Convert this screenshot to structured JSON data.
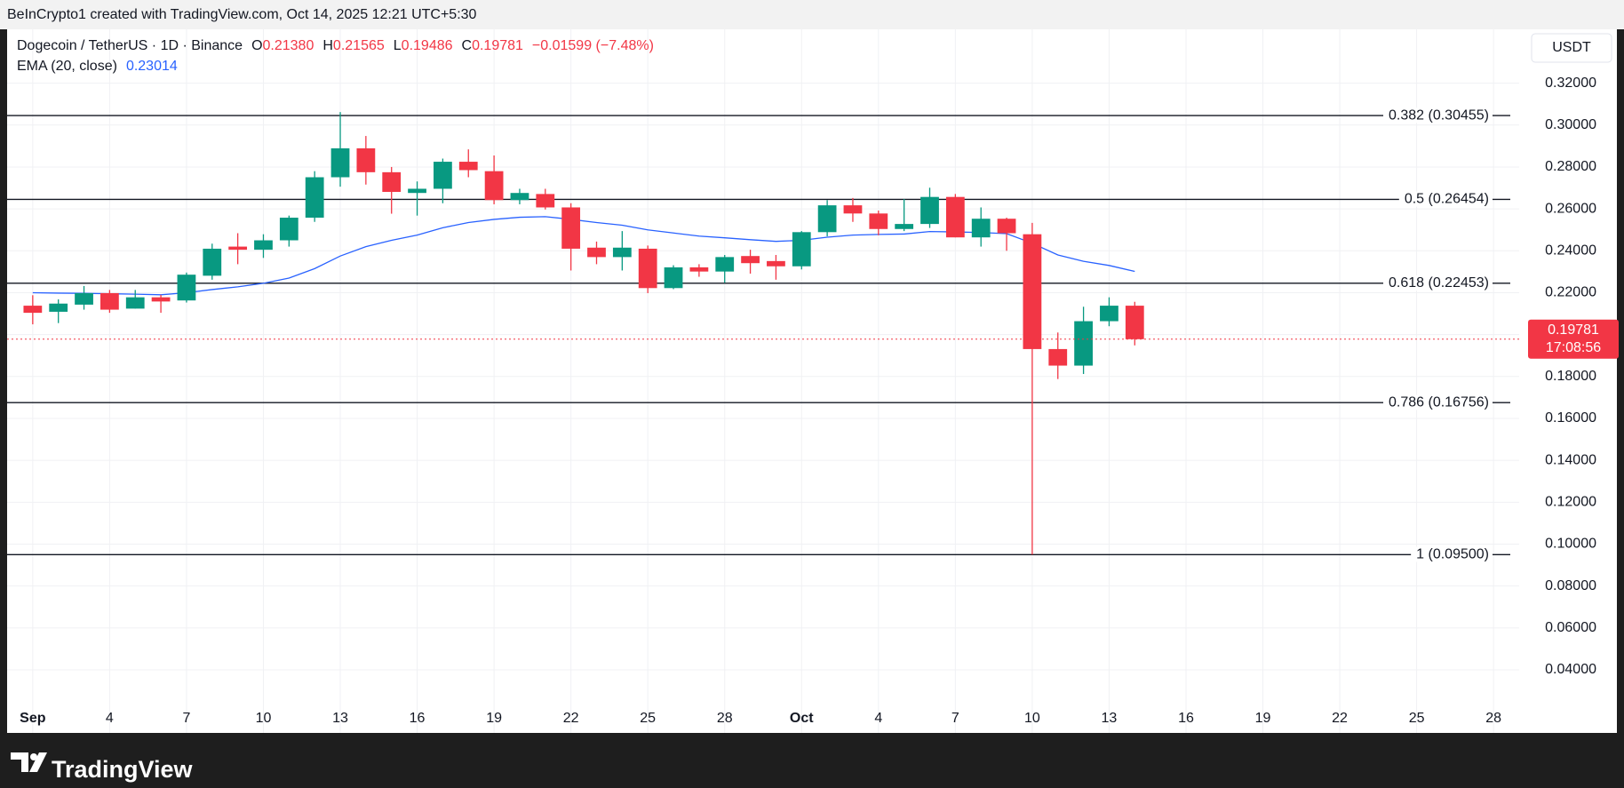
{
  "header": {
    "credit": "BeInCrypto1 created with TradingView.com, Oct 14, 2025 12:21 UTC+5:30"
  },
  "footer": {
    "logo": "TradingView"
  },
  "chart_data": {
    "type": "candlestick",
    "symbol": "Dogecoin / TetherUS · 1D · Binance",
    "legend": {
      "open_letter": "O",
      "open_value": "0.21380",
      "high_letter": "H",
      "low_letter": "L",
      "close_letter": "C",
      "change": "−0.01599 (−7.48%)"
    },
    "currency": "USDT",
    "countdown": "17:08:56",
    "up_color": "#089981",
    "down_color": "#f23645",
    "grid": true,
    "x": [
      "2025-09-01",
      "2025-09-02",
      "2025-09-03",
      "2025-09-04",
      "2025-09-05",
      "2025-09-06",
      "2025-09-07",
      "2025-09-08",
      "2025-09-09",
      "2025-09-10",
      "2025-09-11",
      "2025-09-12",
      "2025-09-13",
      "2025-09-14",
      "2025-09-15",
      "2025-09-16",
      "2025-09-17",
      "2025-09-18",
      "2025-09-19",
      "2025-09-20",
      "2025-09-21",
      "2025-09-22",
      "2025-09-23",
      "2025-09-24",
      "2025-09-25",
      "2025-09-26",
      "2025-09-27",
      "2025-09-28",
      "2025-09-29",
      "2025-09-30",
      "2025-10-01",
      "2025-10-02",
      "2025-10-03",
      "2025-10-04",
      "2025-10-05",
      "2025-10-06",
      "2025-10-07",
      "2025-10-08",
      "2025-10-09",
      "2025-10-10",
      "2025-10-11",
      "2025-10-12",
      "2025-10-13",
      "2025-10-14"
    ],
    "open": [
      0.2138,
      0.2109,
      0.2143,
      0.2198,
      0.2124,
      0.2178,
      0.2163,
      0.2281,
      0.242,
      0.2405,
      0.245,
      0.2558,
      0.2751,
      0.2889,
      0.2775,
      0.2676,
      0.2696,
      0.2825,
      0.278,
      0.2642,
      0.2671,
      0.2607,
      0.2415,
      0.237,
      0.241,
      0.2222,
      0.2321,
      0.2301,
      0.2375,
      0.2351,
      0.2326,
      0.2489,
      0.2617,
      0.2578,
      0.2504,
      0.2528,
      0.2657,
      0.2464,
      0.2553,
      0.2479,
      0.1931,
      0.1852,
      0.2064,
      0.2138
    ],
    "high": [
      0.2188,
      0.2168,
      0.2232,
      0.2213,
      0.2213,
      0.219,
      0.2296,
      0.2434,
      0.2484,
      0.2479,
      0.2568,
      0.278,
      0.3062,
      0.2948,
      0.28,
      0.2731,
      0.284,
      0.2884,
      0.2855,
      0.2696,
      0.2696,
      0.2627,
      0.2444,
      0.2494,
      0.2425,
      0.2331,
      0.2336,
      0.238,
      0.2405,
      0.238,
      0.2494,
      0.2642,
      0.2652,
      0.2592,
      0.2647,
      0.2701,
      0.2671,
      0.2607,
      0.2558,
      0.2533,
      0.201,
      0.2133,
      0.2178,
      0.21565
    ],
    "low": [
      0.2049,
      0.2055,
      0.2119,
      0.2104,
      0.2124,
      0.2104,
      0.2153,
      0.2262,
      0.2336,
      0.2366,
      0.242,
      0.2538,
      0.2706,
      0.2716,
      0.2577,
      0.2568,
      0.2627,
      0.2751,
      0.2622,
      0.2622,
      0.2597,
      0.2306,
      0.2336,
      0.2306,
      0.2198,
      0.2217,
      0.2276,
      0.2247,
      0.2291,
      0.2262,
      0.2311,
      0.2469,
      0.2538,
      0.2474,
      0.2494,
      0.2509,
      0.2464,
      0.242,
      0.24,
      0.095,
      0.1788,
      0.1812,
      0.204,
      0.19486
    ],
    "close": [
      0.2104,
      0.2148,
      0.2198,
      0.2119,
      0.2178,
      0.2158,
      0.2286,
      0.241,
      0.2405,
      0.245,
      0.2558,
      0.2751,
      0.2889,
      0.2775,
      0.2681,
      0.2696,
      0.2825,
      0.2785,
      0.2642,
      0.2676,
      0.2607,
      0.241,
      0.237,
      0.2415,
      0.2222,
      0.2321,
      0.2301,
      0.237,
      0.2341,
      0.2326,
      0.2489,
      0.2617,
      0.2578,
      0.2504,
      0.2528,
      0.2657,
      0.2464,
      0.2553,
      0.2484,
      0.1931,
      0.1852,
      0.2064,
      0.2138,
      0.19781
    ],
    "ema": {
      "name": "EMA (20, close)",
      "color": "#2962ff",
      "values": [
        0.22,
        0.2198,
        0.2197,
        0.2195,
        0.2193,
        0.219,
        0.22,
        0.2215,
        0.2228,
        0.2245,
        0.227,
        0.2315,
        0.2375,
        0.242,
        0.245,
        0.2475,
        0.251,
        0.2535,
        0.255,
        0.256,
        0.2563,
        0.255,
        0.2535,
        0.2522,
        0.25,
        0.2485,
        0.247,
        0.2462,
        0.2453,
        0.2445,
        0.245,
        0.2465,
        0.2475,
        0.2478,
        0.248,
        0.2492,
        0.249,
        0.2487,
        0.2482,
        0.2436,
        0.238,
        0.235,
        0.233,
        0.23014
      ]
    },
    "fib_levels": [
      {
        "value": 0.30455,
        "label": "0.382 (0.30455)"
      },
      {
        "value": 0.26454,
        "label": "0.5 (0.26454)"
      },
      {
        "value": 0.22453,
        "label": "0.618 (0.22453)"
      },
      {
        "value": 0.16756,
        "label": "0.786 (0.16756)"
      },
      {
        "value": 0.095,
        "label": "1 (0.09500)"
      }
    ],
    "xlim": [
      "2025-08-31",
      "2025-10-29"
    ],
    "xticks": [
      {
        "value": "2025-09-01",
        "label": "Sep"
      },
      {
        "value": "2025-09-04",
        "label": "4"
      },
      {
        "value": "2025-09-07",
        "label": "7"
      },
      {
        "value": "2025-09-10",
        "label": "10"
      },
      {
        "value": "2025-09-13",
        "label": "13"
      },
      {
        "value": "2025-09-16",
        "label": "16"
      },
      {
        "value": "2025-09-19",
        "label": "19"
      },
      {
        "value": "2025-09-22",
        "label": "22"
      },
      {
        "value": "2025-09-25",
        "label": "25"
      },
      {
        "value": "2025-09-28",
        "label": "28"
      },
      {
        "value": "2025-10-01",
        "label": "Oct"
      },
      {
        "value": "2025-10-04",
        "label": "4"
      },
      {
        "value": "2025-10-07",
        "label": "7"
      },
      {
        "value": "2025-10-10",
        "label": "10"
      },
      {
        "value": "2025-10-13",
        "label": "13"
      },
      {
        "value": "2025-10-16",
        "label": "16"
      },
      {
        "value": "2025-10-19",
        "label": "19"
      },
      {
        "value": "2025-10-22",
        "label": "22"
      },
      {
        "value": "2025-10-25",
        "label": "25"
      },
      {
        "value": "2025-10-28",
        "label": "28"
      }
    ],
    "ylim": [
      0.0099,
      0.3457
    ],
    "yticks": [
      {
        "value": 0.32,
        "label": "0.32000"
      },
      {
        "value": 0.3,
        "label": "0.30000"
      },
      {
        "value": 0.28,
        "label": "0.28000"
      },
      {
        "value": 0.26,
        "label": "0.26000"
      },
      {
        "value": 0.24,
        "label": "0.24000"
      },
      {
        "value": 0.22,
        "label": "0.22000"
      },
      {
        "value": 0.2,
        "label": "0.20000"
      },
      {
        "value": 0.18,
        "label": "0.18000"
      },
      {
        "value": 0.16,
        "label": "0.16000"
      },
      {
        "value": 0.14,
        "label": "0.14000"
      },
      {
        "value": 0.12,
        "label": "0.12000"
      },
      {
        "value": 0.1,
        "label": "0.10000"
      },
      {
        "value": 0.08,
        "label": "0.08000"
      },
      {
        "value": 0.06,
        "label": "0.06000"
      },
      {
        "value": 0.04,
        "label": "0.04000"
      }
    ]
  }
}
